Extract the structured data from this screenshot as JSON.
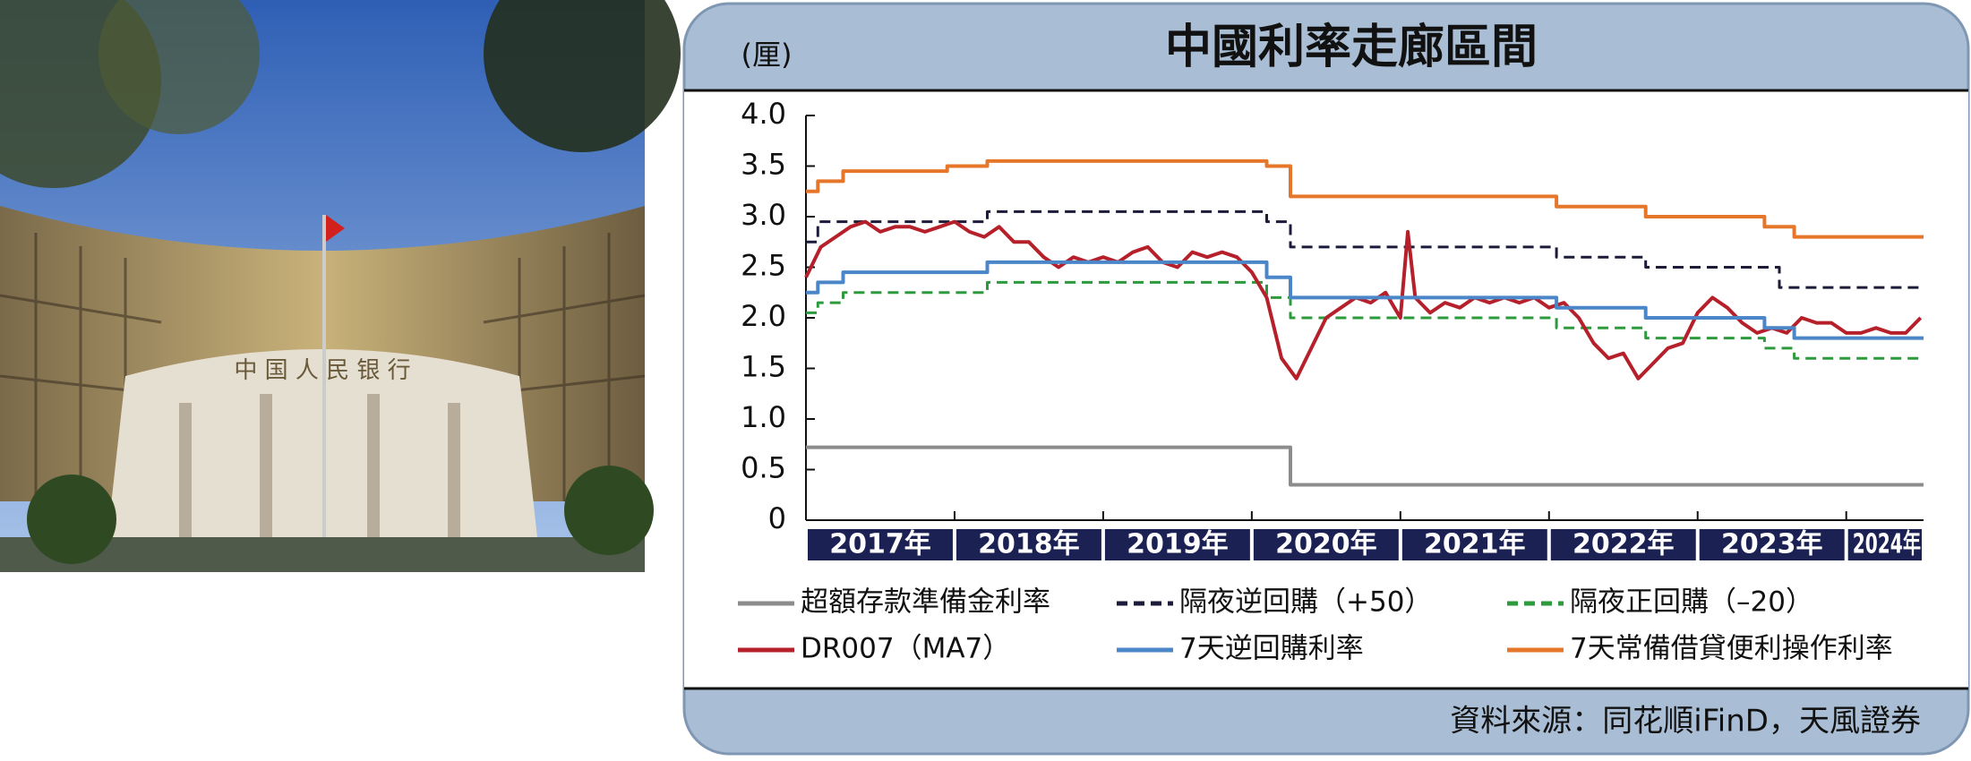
{
  "chart_data": {
    "type": "line",
    "title": "中國利率走廊區間",
    "y_label": "(厘)",
    "source": "資料來源：同花順iFinD，天風證券",
    "xlim": [
      2017,
      2024.52
    ],
    "xticks": [
      {
        "value": 2017,
        "label": "2017年"
      },
      {
        "value": 2018,
        "label": "2018年"
      },
      {
        "value": 2019,
        "label": "2019年"
      },
      {
        "value": 2020,
        "label": "2020年"
      },
      {
        "value": 2021,
        "label": "2021年"
      },
      {
        "value": 2022,
        "label": "2022年"
      },
      {
        "value": 2023,
        "label": "2023年"
      },
      {
        "value": 2024,
        "label": "2024年"
      }
    ],
    "ylim": [
      0,
      4
    ],
    "yticks": [
      0,
      0.5,
      {
        "value": 1,
        "label": "1.0"
      },
      1.5,
      {
        "value": 2,
        "label": "2.0"
      },
      2.5,
      {
        "value": 3,
        "label": "3.0"
      },
      3.5,
      {
        "value": 4,
        "label": "4.0"
      }
    ],
    "grid": false,
    "series": [
      {
        "name": "超額存款準備金利率",
        "color": "#8c8c8c",
        "dashed": false,
        "x": [
          2017,
          2020.26,
          2020.26,
          2024.52
        ],
        "values": [
          0.72,
          0.72,
          0.35,
          0.35
        ]
      },
      {
        "name": "隔夜逆回購（+50）",
        "color": "#1c1c3a",
        "dashed": true,
        "x": [
          2017,
          2017.08,
          2017.08,
          2018.22,
          2018.22,
          2020.1,
          2020.1,
          2020.26,
          2020.26,
          2022.05,
          2022.05,
          2022.65,
          2022.65,
          2023.55,
          2023.55,
          2024.52
        ],
        "values": [
          2.75,
          2.75,
          2.95,
          2.95,
          3.05,
          3.05,
          2.95,
          2.95,
          2.7,
          2.7,
          2.6,
          2.6,
          2.5,
          2.5,
          2.3,
          2.3
        ]
      },
      {
        "name": "隔夜正回購（–20）",
        "color": "#2e9a3e",
        "dashed": true,
        "x": [
          2017,
          2017.08,
          2017.08,
          2017.25,
          2017.25,
          2018.22,
          2018.22,
          2020.1,
          2020.1,
          2020.26,
          2020.26,
          2022.05,
          2022.05,
          2022.65,
          2022.65,
          2023.45,
          2023.45,
          2023.65,
          2023.65,
          2024.52
        ],
        "values": [
          2.05,
          2.05,
          2.15,
          2.15,
          2.25,
          2.25,
          2.35,
          2.35,
          2.2,
          2.2,
          2.0,
          2.0,
          1.9,
          1.9,
          1.8,
          1.8,
          1.7,
          1.7,
          1.6,
          1.6
        ]
      },
      {
        "name": "DR007（MA7）",
        "color": "#b5202a",
        "dashed": false,
        "x": [
          2017,
          2017.1,
          2017.2,
          2017.3,
          2017.4,
          2017.5,
          2017.6,
          2017.7,
          2017.8,
          2017.9,
          2018,
          2018.1,
          2018.2,
          2018.3,
          2018.4,
          2018.5,
          2018.6,
          2018.7,
          2018.8,
          2018.9,
          2019,
          2019.1,
          2019.2,
          2019.3,
          2019.4,
          2019.5,
          2019.6,
          2019.7,
          2019.8,
          2019.9,
          2020,
          2020.1,
          2020.2,
          2020.3,
          2020.4,
          2020.5,
          2020.6,
          2020.7,
          2020.8,
          2020.9,
          2021,
          2021.05,
          2021.1,
          2021.2,
          2021.3,
          2021.4,
          2021.5,
          2021.6,
          2021.7,
          2021.8,
          2021.9,
          2022,
          2022.1,
          2022.2,
          2022.3,
          2022.4,
          2022.5,
          2022.6,
          2022.7,
          2022.8,
          2022.9,
          2023,
          2023.1,
          2023.2,
          2023.3,
          2023.4,
          2023.5,
          2023.6,
          2023.7,
          2023.8,
          2023.9,
          2024,
          2024.1,
          2024.2,
          2024.3,
          2024.4,
          2024.5
        ],
        "values": [
          2.4,
          2.7,
          2.8,
          2.9,
          2.95,
          2.85,
          2.9,
          2.9,
          2.85,
          2.9,
          2.95,
          2.85,
          2.8,
          2.9,
          2.75,
          2.75,
          2.6,
          2.5,
          2.6,
          2.55,
          2.6,
          2.55,
          2.65,
          2.7,
          2.55,
          2.5,
          2.65,
          2.6,
          2.65,
          2.6,
          2.45,
          2.2,
          1.6,
          1.4,
          1.7,
          2.0,
          2.1,
          2.2,
          2.15,
          2.25,
          2.0,
          2.85,
          2.2,
          2.05,
          2.15,
          2.1,
          2.2,
          2.15,
          2.2,
          2.15,
          2.2,
          2.1,
          2.15,
          2.0,
          1.75,
          1.6,
          1.65,
          1.4,
          1.55,
          1.7,
          1.75,
          2.05,
          2.2,
          2.1,
          1.95,
          1.85,
          1.9,
          1.85,
          2.0,
          1.95,
          1.95,
          1.85,
          1.85,
          1.9,
          1.85,
          1.85,
          2.0
        ]
      },
      {
        "name": "7天逆回購利率",
        "color": "#4a86c8",
        "dashed": false,
        "x": [
          2017,
          2017.08,
          2017.08,
          2017.25,
          2017.25,
          2018.22,
          2018.22,
          2020.1,
          2020.1,
          2020.26,
          2020.26,
          2022.05,
          2022.05,
          2022.65,
          2022.65,
          2023.45,
          2023.45,
          2023.65,
          2023.65,
          2024.52
        ],
        "values": [
          2.25,
          2.25,
          2.35,
          2.35,
          2.45,
          2.45,
          2.55,
          2.55,
          2.4,
          2.4,
          2.2,
          2.2,
          2.1,
          2.1,
          2.0,
          2.0,
          1.9,
          1.9,
          1.8,
          1.8
        ]
      },
      {
        "name": "7天常備借貸便利操作利率",
        "color": "#e5762a",
        "dashed": false,
        "x": [
          2017,
          2017.08,
          2017.08,
          2017.25,
          2017.25,
          2017.95,
          2017.95,
          2018.22,
          2018.22,
          2020.1,
          2020.1,
          2020.26,
          2020.26,
          2022.05,
          2022.05,
          2022.65,
          2022.65,
          2023.45,
          2023.45,
          2023.65,
          2023.65,
          2024.52
        ],
        "values": [
          3.25,
          3.25,
          3.35,
          3.35,
          3.45,
          3.45,
          3.5,
          3.5,
          3.55,
          3.55,
          3.5,
          3.5,
          3.2,
          3.2,
          3.1,
          3.1,
          3.0,
          3.0,
          2.9,
          2.9,
          2.8,
          2.8
        ]
      }
    ]
  }
}
